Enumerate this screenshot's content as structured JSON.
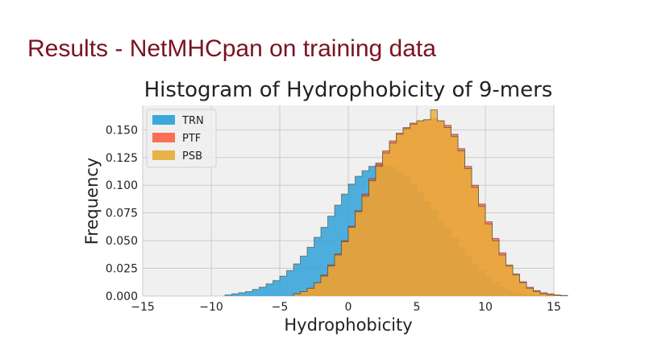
{
  "slide": {
    "title": "Results - NetMHCpan on training data"
  },
  "chart_data": {
    "type": "histogram",
    "title": "Histogram of Hydrophobicity of 9-mers",
    "xlabel": "Hydrophobicity",
    "ylabel": "Frequency",
    "xlim": [
      -15,
      15
    ],
    "ylim": [
      0,
      0.172
    ],
    "xticks": [
      "−15",
      "−10",
      "−5",
      "0",
      "5",
      "10",
      "15"
    ],
    "yticks": [
      "0.000",
      "0.025",
      "0.050",
      "0.075",
      "0.100",
      "0.125",
      "0.150"
    ],
    "grid": true,
    "legend_position": "top-left",
    "legend": [
      "TRN",
      "PTF",
      "PSB"
    ],
    "bin_width": 0.5,
    "series": [
      {
        "name": "TRN",
        "color": "#30a2da",
        "alpha": 0.85,
        "bin_start": -9.0,
        "values": [
          0.001,
          0.002,
          0.003,
          0.004,
          0.006,
          0.008,
          0.011,
          0.014,
          0.018,
          0.023,
          0.029,
          0.036,
          0.044,
          0.053,
          0.062,
          0.072,
          0.082,
          0.092,
          0.101,
          0.108,
          0.113,
          0.117,
          0.119,
          0.118,
          0.116,
          0.112,
          0.107,
          0.1,
          0.093,
          0.085,
          0.077,
          0.069,
          0.06,
          0.052,
          0.044,
          0.036,
          0.029,
          0.023,
          0.017,
          0.012,
          0.008,
          0.005,
          0.003,
          0.002,
          0.001,
          0.0005
        ]
      },
      {
        "name": "PTF",
        "color": "#fc4f30",
        "alpha": 0.7,
        "bin_start": -4.0,
        "values": [
          0.002,
          0.004,
          0.007,
          0.012,
          0.019,
          0.028,
          0.038,
          0.05,
          0.063,
          0.077,
          0.092,
          0.106,
          0.12,
          0.131,
          0.14,
          0.147,
          0.152,
          0.156,
          0.158,
          0.159,
          0.16,
          0.158,
          0.154,
          0.146,
          0.133,
          0.117,
          0.1,
          0.083,
          0.067,
          0.052,
          0.039,
          0.028,
          0.02,
          0.013,
          0.008,
          0.005,
          0.003,
          0.002,
          0.001,
          0.0005
        ]
      },
      {
        "name": "PSB",
        "color": "#e5ae38",
        "alpha": 0.82,
        "bin_start": -4.0,
        "values": [
          0.002,
          0.004,
          0.007,
          0.012,
          0.018,
          0.027,
          0.037,
          0.049,
          0.062,
          0.076,
          0.09,
          0.104,
          0.117,
          0.129,
          0.138,
          0.146,
          0.151,
          0.155,
          0.158,
          0.159,
          0.168,
          0.158,
          0.152,
          0.144,
          0.131,
          0.115,
          0.098,
          0.081,
          0.065,
          0.05,
          0.037,
          0.027,
          0.019,
          0.012,
          0.007,
          0.004,
          0.002,
          0.001,
          0.0005,
          0.0002
        ]
      }
    ]
  }
}
